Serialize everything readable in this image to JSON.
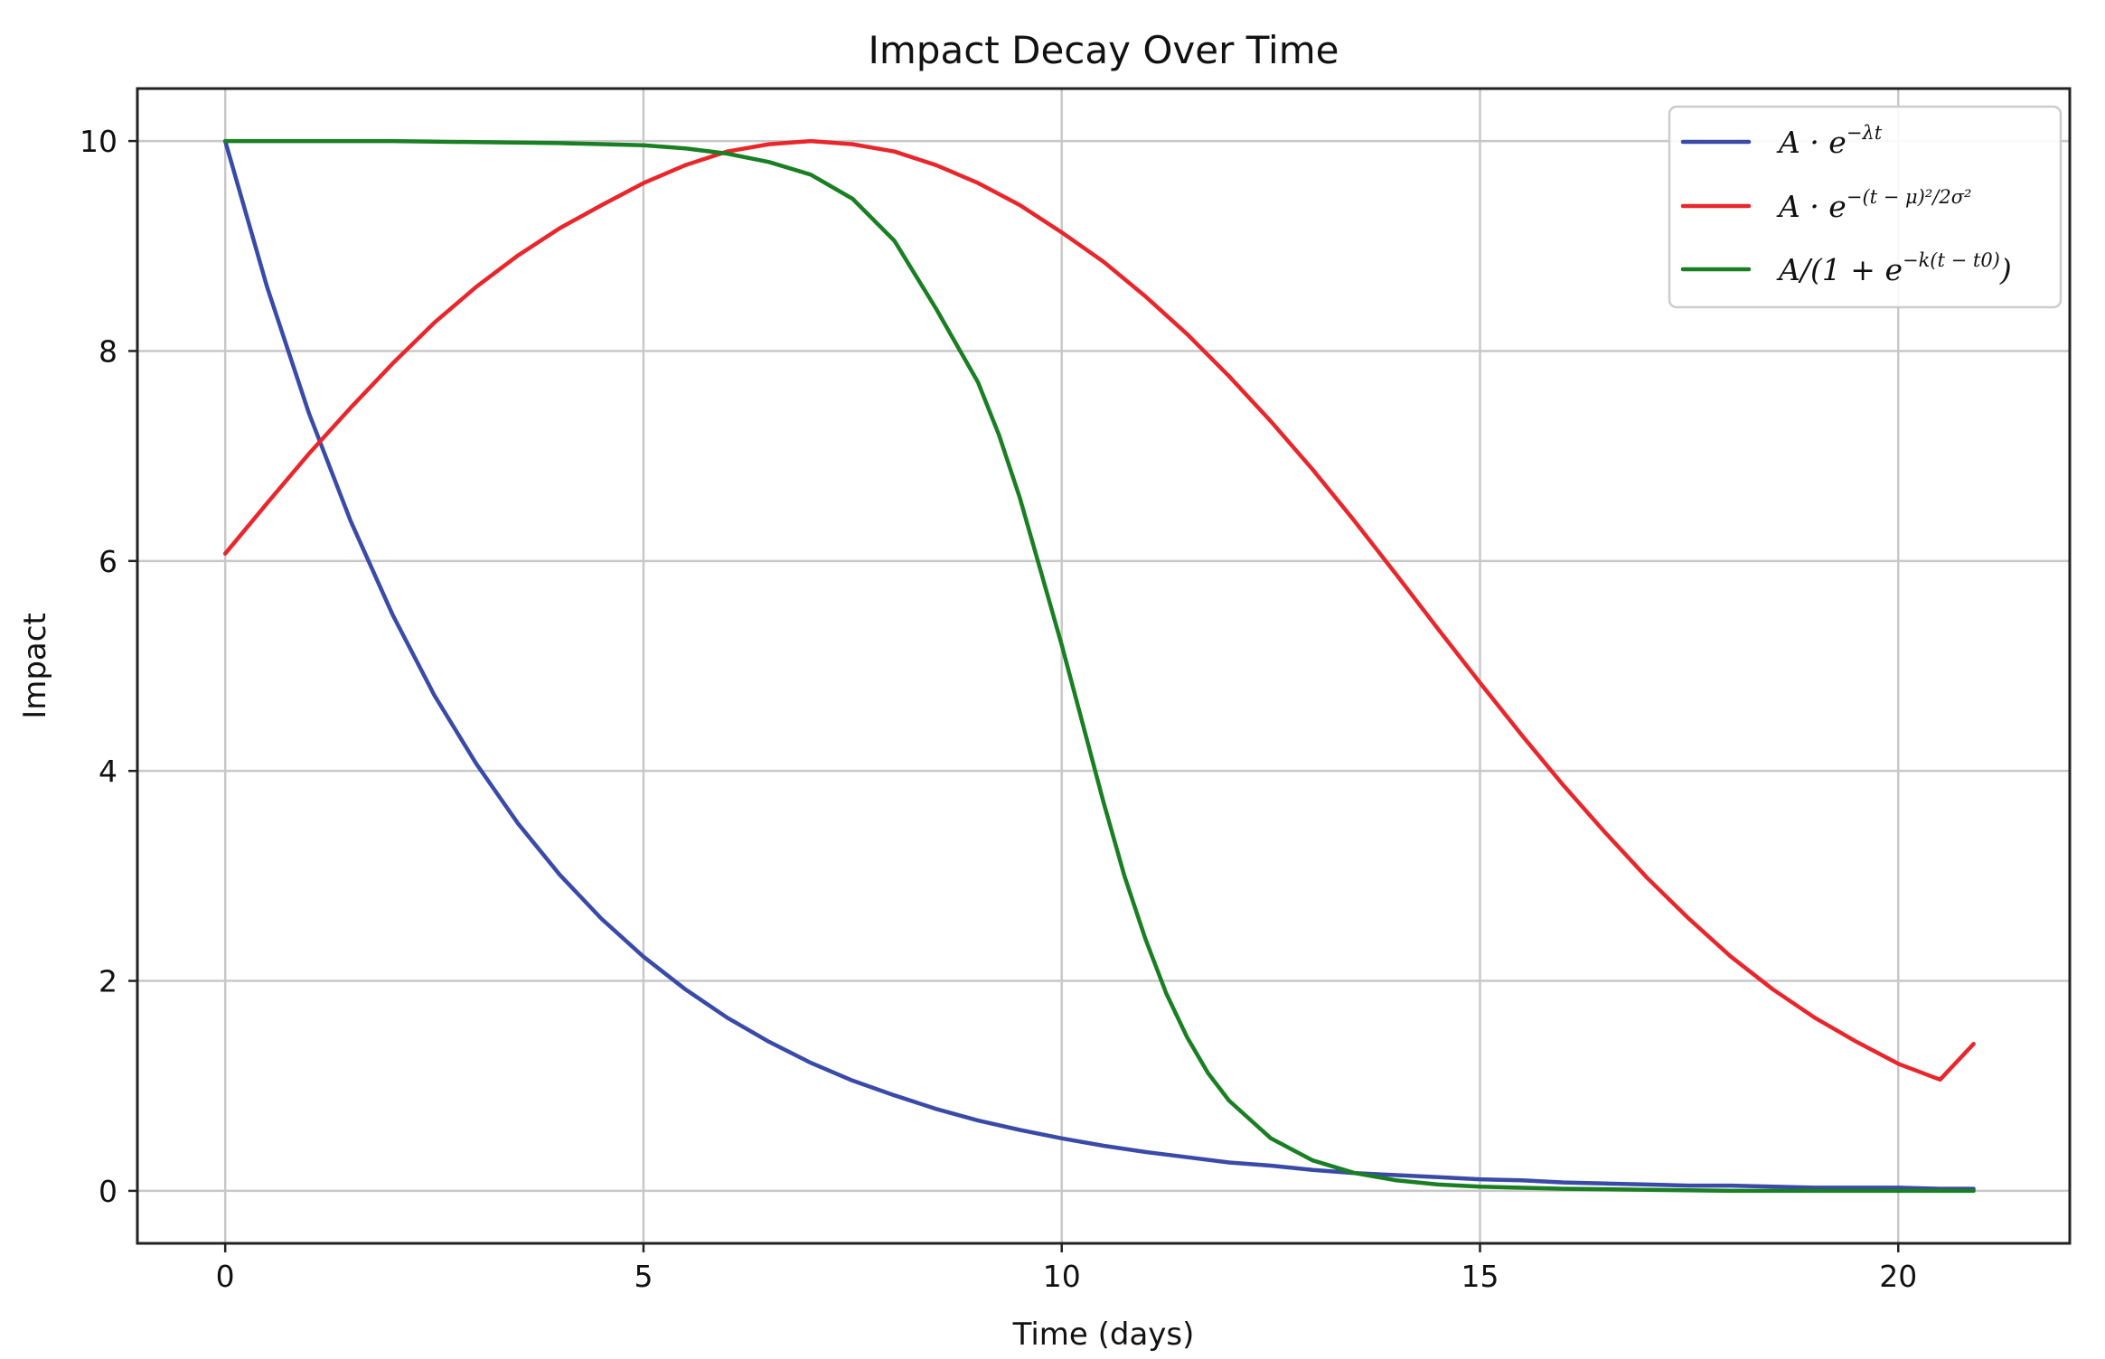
{
  "chart_data": {
    "type": "line",
    "title": "Impact Decay Over Time",
    "xlabel": "Time (days)",
    "ylabel": "Impact",
    "xlim": [
      -1.05,
      22.05
    ],
    "ylim": [
      -0.5,
      10.5
    ],
    "xticks": [
      0,
      5,
      10,
      15,
      20
    ],
    "yticks": [
      0,
      2,
      4,
      6,
      8,
      10
    ],
    "xtick_labels": [
      "0",
      "5",
      "10",
      "15",
      "20"
    ],
    "ytick_labels": [
      "0",
      "2",
      "4",
      "6",
      "8",
      "10"
    ],
    "grid": true,
    "legend_position": "top-right",
    "series": [
      {
        "name": "A · e^(−λt)",
        "color": "#3a4aa8",
        "x": [
          0,
          0.5,
          1,
          1.5,
          2,
          2.5,
          3,
          3.5,
          4,
          4.5,
          5,
          5.5,
          6,
          6.5,
          7,
          7.5,
          8,
          8.5,
          9,
          9.5,
          10,
          10.5,
          11,
          11.5,
          12,
          12.5,
          13,
          13.5,
          14,
          14.5,
          15,
          15.5,
          16,
          16.5,
          17,
          17.5,
          18,
          18.5,
          19,
          19.5,
          20,
          20.5,
          20.9
        ],
        "y": [
          10.0,
          8.61,
          7.41,
          6.38,
          5.49,
          4.72,
          4.07,
          3.5,
          3.01,
          2.59,
          2.23,
          1.92,
          1.65,
          1.42,
          1.22,
          1.05,
          0.91,
          0.78,
          0.67,
          0.58,
          0.5,
          0.43,
          0.37,
          0.32,
          0.27,
          0.24,
          0.2,
          0.17,
          0.15,
          0.13,
          0.11,
          0.1,
          0.08,
          0.07,
          0.06,
          0.05,
          0.05,
          0.04,
          0.03,
          0.03,
          0.03,
          0.02,
          0.02
        ]
      },
      {
        "name": "A · e^(−(t−μ)²/2σ²)",
        "color": "#e8262b",
        "x": [
          0,
          0.5,
          1,
          1.5,
          2,
          2.5,
          3,
          3.5,
          4,
          4.5,
          5,
          5.5,
          6,
          6.5,
          7,
          7.5,
          8,
          8.5,
          9,
          9.5,
          10,
          10.5,
          11,
          11.5,
          12,
          12.5,
          13,
          13.5,
          14,
          14.5,
          15,
          15.5,
          16,
          16.5,
          17,
          17.5,
          18,
          18.5,
          19,
          19.5,
          20,
          20.5,
          20.9
        ],
        "y": [
          6.07,
          6.55,
          7.02,
          7.46,
          7.88,
          8.27,
          8.61,
          8.91,
          9.17,
          9.39,
          9.6,
          9.77,
          9.9,
          9.97,
          10.0,
          9.97,
          9.9,
          9.77,
          9.6,
          9.39,
          9.13,
          8.85,
          8.52,
          8.16,
          7.76,
          7.33,
          6.87,
          6.38,
          5.87,
          5.35,
          4.84,
          4.34,
          3.86,
          3.41,
          2.98,
          2.59,
          2.23,
          1.92,
          1.65,
          1.42,
          1.21,
          1.06,
          1.4
        ]
      },
      {
        "name": "A/(1 + e^(−k(t − t0)))",
        "color": "#1a7f23",
        "x": [
          0,
          1,
          2,
          3,
          4,
          5,
          5.5,
          6,
          6.5,
          7,
          7.5,
          8,
          8.5,
          9,
          9.25,
          9.5,
          9.75,
          10,
          10.25,
          10.5,
          10.75,
          11,
          11.25,
          11.5,
          11.75,
          12,
          12.5,
          13,
          13.5,
          14,
          14.5,
          15,
          16,
          17,
          18,
          19,
          20,
          20.9
        ],
        "y": [
          10.0,
          10.0,
          10.0,
          9.99,
          9.98,
          9.96,
          9.93,
          9.88,
          9.8,
          9.68,
          9.45,
          9.05,
          8.4,
          7.7,
          7.2,
          6.6,
          5.9,
          5.2,
          4.45,
          3.7,
          3.0,
          2.4,
          1.88,
          1.46,
          1.12,
          0.86,
          0.5,
          0.29,
          0.17,
          0.1,
          0.06,
          0.04,
          0.02,
          0.01,
          0.0,
          0.0,
          0.0,
          0.0
        ]
      }
    ]
  }
}
